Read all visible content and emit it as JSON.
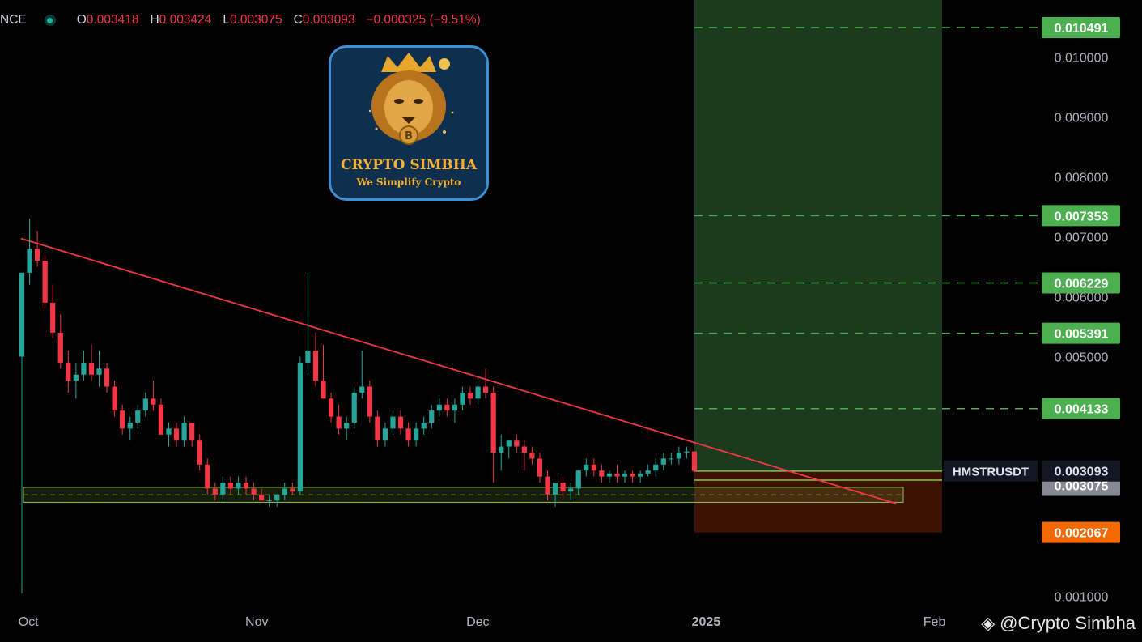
{
  "header": {
    "symbol_fragment": "NCE",
    "open_label": "O",
    "open": "0.003418",
    "high_label": "H",
    "high": "0.003424",
    "low_label": "L",
    "low": "0.003075",
    "close_label": "C",
    "close": "0.003093",
    "change": "−0.000325 (−9.51%)"
  },
  "logo": {
    "title": "CRYPTO SIMBHA",
    "subtitle": "We Simplify Crypto"
  },
  "watermark": "@Crypto Simbha",
  "colors": {
    "up": "#26a69a",
    "down": "#f23645",
    "target": "#4caf50",
    "stop": "#f56a00",
    "trendline": "#f23645",
    "support": "#8bc34a"
  },
  "chart_data": {
    "type": "candlestick",
    "symbol": "HMSTRUSDT",
    "x_ticks": [
      "Oct",
      "Nov",
      "Dec",
      "2025",
      "Feb"
    ],
    "y_ticks": [
      0.001,
      0.005,
      0.006,
      0.007,
      0.008,
      0.009,
      0.01
    ],
    "y_tick_labels": [
      "0.001000",
      "0.005000",
      "0.006000",
      "0.007000",
      "0.008000",
      "0.009000",
      "0.010000"
    ],
    "ylim": [
      0.00082,
      0.01095
    ],
    "x_range_days": [
      0,
      138
    ],
    "last_price": "0.003093",
    "last_price_label": "HMSTRUSDT",
    "low_tag": "0.003075",
    "targets": [
      {
        "value": 0.010491,
        "label": "0.010491"
      },
      {
        "value": 0.007353,
        "label": "0.007353"
      },
      {
        "value": 0.006229,
        "label": "0.006229"
      },
      {
        "value": 0.005391,
        "label": "0.005391"
      },
      {
        "value": 0.004133,
        "label": "0.004133"
      }
    ],
    "stop": {
      "value": 0.002067,
      "label": "0.002067"
    },
    "entry_zone": [
      0.00294,
      0.00309
    ],
    "support_zone": [
      0.00257,
      0.00282
    ],
    "trendline": [
      [
        0,
        0.00697
      ],
      [
        90,
        0.00362
      ]
    ],
    "candles": [
      [
        0.005,
        0.0064,
        0.00105,
        0.0064
      ],
      [
        0.0064,
        0.0073,
        0.0062,
        0.0068
      ],
      [
        0.0068,
        0.0071,
        0.0065,
        0.0066
      ],
      [
        0.0066,
        0.0067,
        0.0058,
        0.0059
      ],
      [
        0.0059,
        0.0062,
        0.0053,
        0.0054
      ],
      [
        0.0054,
        0.0057,
        0.0048,
        0.0049
      ],
      [
        0.0049,
        0.0051,
        0.0044,
        0.0046
      ],
      [
        0.0046,
        0.0049,
        0.0043,
        0.0047
      ],
      [
        0.0047,
        0.0051,
        0.0046,
        0.0049
      ],
      [
        0.0049,
        0.0052,
        0.0046,
        0.0047
      ],
      [
        0.0047,
        0.0051,
        0.0045,
        0.0048
      ],
      [
        0.0048,
        0.0049,
        0.0044,
        0.0045
      ],
      [
        0.0045,
        0.0046,
        0.004,
        0.0041
      ],
      [
        0.0041,
        0.0042,
        0.0037,
        0.0038
      ],
      [
        0.0038,
        0.004,
        0.0036,
        0.0039
      ],
      [
        0.0039,
        0.0042,
        0.0038,
        0.0041
      ],
      [
        0.0041,
        0.0044,
        0.004,
        0.0043
      ],
      [
        0.0043,
        0.0046,
        0.0041,
        0.0042
      ],
      [
        0.0042,
        0.0043,
        0.0037,
        0.0037
      ],
      [
        0.0037,
        0.0039,
        0.0035,
        0.0038
      ],
      [
        0.0038,
        0.0039,
        0.0035,
        0.0036
      ],
      [
        0.0036,
        0.004,
        0.0035,
        0.0039
      ],
      [
        0.0039,
        0.0039,
        0.0035,
        0.0036
      ],
      [
        0.0036,
        0.0037,
        0.0031,
        0.0032
      ],
      [
        0.0032,
        0.0033,
        0.0027,
        0.0028
      ],
      [
        0.0028,
        0.0029,
        0.0026,
        0.0027
      ],
      [
        0.0027,
        0.003,
        0.0026,
        0.0029
      ],
      [
        0.0029,
        0.003,
        0.0027,
        0.0028
      ],
      [
        0.0028,
        0.003,
        0.0027,
        0.0029
      ],
      [
        0.0029,
        0.003,
        0.0027,
        0.0028
      ],
      [
        0.0028,
        0.0029,
        0.0026,
        0.0027
      ],
      [
        0.0027,
        0.0028,
        0.0026,
        0.0026
      ],
      [
        0.0026,
        0.0027,
        0.0025,
        0.0026
      ],
      [
        0.0026,
        0.0027,
        0.0025,
        0.0027
      ],
      [
        0.0027,
        0.0029,
        0.0026,
        0.0028
      ],
      [
        0.0028,
        0.0029,
        0.0027,
        0.00275
      ],
      [
        0.00275,
        0.005,
        0.0027,
        0.0049
      ],
      [
        0.0049,
        0.0064,
        0.0047,
        0.0051
      ],
      [
        0.0051,
        0.0054,
        0.0045,
        0.0046
      ],
      [
        0.0046,
        0.0052,
        0.0043,
        0.0043
      ],
      [
        0.0043,
        0.0044,
        0.0039,
        0.004
      ],
      [
        0.004,
        0.0042,
        0.0037,
        0.0038
      ],
      [
        0.0038,
        0.004,
        0.0036,
        0.0039
      ],
      [
        0.0039,
        0.0045,
        0.0038,
        0.0044
      ],
      [
        0.0044,
        0.0051,
        0.0043,
        0.0045
      ],
      [
        0.0045,
        0.0046,
        0.0039,
        0.004
      ],
      [
        0.004,
        0.0041,
        0.0035,
        0.0036
      ],
      [
        0.0036,
        0.0039,
        0.0035,
        0.0038
      ],
      [
        0.0038,
        0.0041,
        0.0037,
        0.004
      ],
      [
        0.004,
        0.0041,
        0.0037,
        0.0038
      ],
      [
        0.0038,
        0.0039,
        0.0035,
        0.0036
      ],
      [
        0.0036,
        0.0039,
        0.0035,
        0.0038
      ],
      [
        0.0038,
        0.004,
        0.0037,
        0.0039
      ],
      [
        0.0039,
        0.0042,
        0.0038,
        0.0041
      ],
      [
        0.0041,
        0.0043,
        0.004,
        0.0042
      ],
      [
        0.0042,
        0.0043,
        0.004,
        0.0041
      ],
      [
        0.0041,
        0.0043,
        0.0039,
        0.0042
      ],
      [
        0.0042,
        0.0045,
        0.0041,
        0.0044
      ],
      [
        0.0044,
        0.0045,
        0.0042,
        0.0043
      ],
      [
        0.0043,
        0.0046,
        0.0042,
        0.0045
      ],
      [
        0.0045,
        0.0048,
        0.0043,
        0.0044
      ],
      [
        0.0044,
        0.0045,
        0.0029,
        0.0034
      ],
      [
        0.0034,
        0.0037,
        0.0031,
        0.0035
      ],
      [
        0.0035,
        0.0036,
        0.0033,
        0.0036
      ],
      [
        0.0036,
        0.0037,
        0.0034,
        0.0035
      ],
      [
        0.0035,
        0.0036,
        0.0031,
        0.0034
      ],
      [
        0.0034,
        0.0035,
        0.0032,
        0.0033
      ],
      [
        0.0033,
        0.0034,
        0.0029,
        0.003
      ],
      [
        0.003,
        0.0031,
        0.0026,
        0.0027
      ],
      [
        0.0027,
        0.0029,
        0.0025,
        0.0029
      ],
      [
        0.0029,
        0.003,
        0.00262,
        0.00275
      ],
      [
        0.00275,
        0.0029,
        0.0026,
        0.0028
      ],
      [
        0.0028,
        0.0031,
        0.0027,
        0.0031
      ],
      [
        0.0031,
        0.0033,
        0.003,
        0.0032
      ],
      [
        0.0032,
        0.0033,
        0.003,
        0.0031
      ],
      [
        0.0031,
        0.0032,
        0.0029,
        0.003
      ],
      [
        0.003,
        0.0031,
        0.0029,
        0.00305
      ],
      [
        0.00305,
        0.0032,
        0.0029,
        0.003
      ],
      [
        0.003,
        0.0031,
        0.0029,
        0.00305
      ],
      [
        0.00305,
        0.0031,
        0.0029,
        0.003
      ],
      [
        0.003,
        0.0031,
        0.0029,
        0.00305
      ],
      [
        0.00305,
        0.0032,
        0.003,
        0.0031
      ],
      [
        0.0031,
        0.0033,
        0.003,
        0.0032
      ],
      [
        0.0032,
        0.0034,
        0.0031,
        0.0033
      ],
      [
        0.0033,
        0.0034,
        0.0032,
        0.0033
      ],
      [
        0.0033,
        0.0035,
        0.0032,
        0.0034
      ],
      [
        0.0034,
        0.0035,
        0.0033,
        0.003418
      ],
      [
        0.003418,
        0.003424,
        0.003075,
        0.003093
      ]
    ]
  }
}
